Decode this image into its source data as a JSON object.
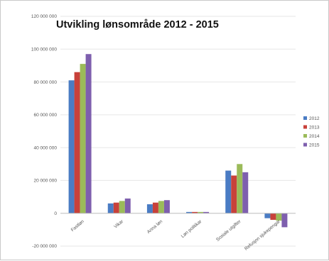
{
  "chart_data": {
    "type": "bar",
    "title": "Utvikling lønsområde 2012 - 2015",
    "xlabel": "",
    "ylabel": "",
    "ylim": [
      -20000000,
      120000000
    ],
    "yticks": [
      120000000,
      100000000,
      80000000,
      60000000,
      40000000,
      20000000,
      0,
      -20000000
    ],
    "ytick_labels": [
      "120 000 000",
      "100 000 000",
      "80 000 000",
      "60 000 000",
      "40 000 000",
      "20 000 000",
      "0",
      "-20 000 000"
    ],
    "categories": [
      "Fastløn",
      "Vikar",
      "Anna løn",
      "Løn politikar",
      "Sosiale utgifter",
      "Refusjon sjukepengar"
    ],
    "series": [
      {
        "name": "2012",
        "color": "#4a7cc4",
        "values": [
          81000000,
          6000000,
          5500000,
          800000,
          26000000,
          -3000000
        ]
      },
      {
        "name": "2013",
        "color": "#c8413a",
        "values": [
          86000000,
          6500000,
          6500000,
          800000,
          23000000,
          -4000000
        ]
      },
      {
        "name": "2014",
        "color": "#9bbb59",
        "values": [
          91000000,
          7500000,
          7500000,
          800000,
          30000000,
          -4500000
        ]
      },
      {
        "name": "2015",
        "color": "#7e5fae",
        "values": [
          97000000,
          9000000,
          8000000,
          800000,
          25000000,
          -8500000
        ]
      }
    ],
    "grid": true,
    "legend": "right"
  }
}
